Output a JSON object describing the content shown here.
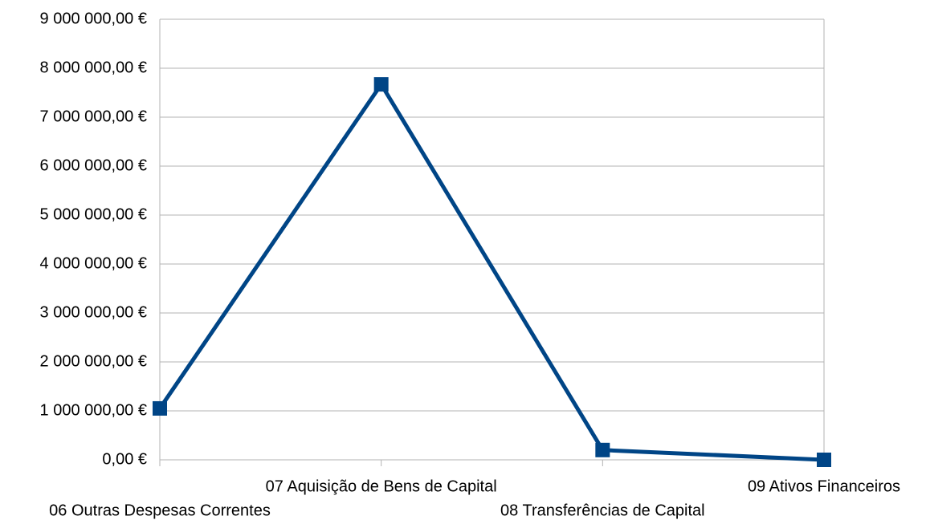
{
  "chart_data": {
    "type": "line",
    "categories": [
      "06 Outras Despesas Correntes",
      "07 Aquisição de Bens de Capital",
      "08 Transferências de Capital",
      "09 Ativos Financeiros"
    ],
    "series": [
      {
        "name": null,
        "color": "#004586",
        "values": [
          1050000,
          7670000,
          200000,
          0
        ]
      }
    ],
    "ylim": [
      0,
      9000000
    ],
    "yticks": [
      {
        "value": 0,
        "label": "0,00 €"
      },
      {
        "value": 1000000,
        "label": "1 000 000,00 €"
      },
      {
        "value": 2000000,
        "label": "2 000 000,00 €"
      },
      {
        "value": 3000000,
        "label": "3 000 000,00 €"
      },
      {
        "value": 4000000,
        "label": "4 000 000,00 €"
      },
      {
        "value": 5000000,
        "label": "5 000 000,00 €"
      },
      {
        "value": 6000000,
        "label": "6 000 000,00 €"
      },
      {
        "value": 7000000,
        "label": "7 000 000,00 €"
      },
      {
        "value": 8000000,
        "label": "8 000 000,00 €"
      },
      {
        "value": 9000000,
        "label": "9 000 000,00 €"
      }
    ],
    "grid": true
  }
}
